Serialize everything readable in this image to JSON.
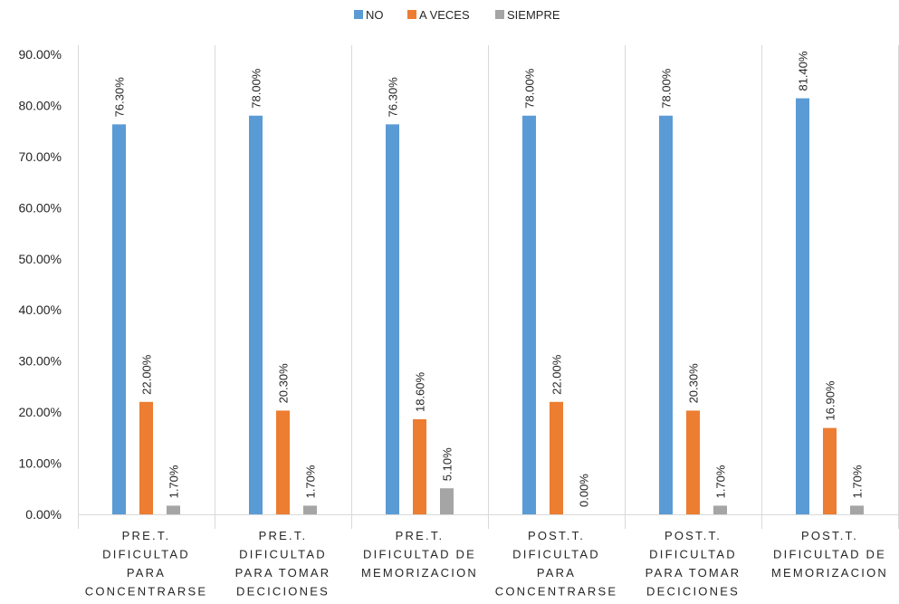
{
  "chart_data": {
    "type": "bar",
    "categories": [
      [
        "PRE.T.",
        "DIFICULTAD",
        "PARA",
        "CONCENTRARSE"
      ],
      [
        "PRE.T.",
        "DIFICULTAD",
        "PARA TOMAR",
        "DECICIONES"
      ],
      [
        "PRE.T.",
        "DIFICULTAD DE",
        "MEMORIZACION"
      ],
      [
        "POST.T.",
        "DIFICULTAD",
        "PARA",
        "CONCENTRARSE"
      ],
      [
        "POST.T.",
        "DIFICULTAD",
        "PARA TOMAR",
        "DECICIONES"
      ],
      [
        "POST.T.",
        "DIFICULTAD DE",
        "MEMORIZACION"
      ]
    ],
    "series": [
      {
        "name": "NO",
        "color": "#5b9bd5",
        "values": [
          76.3,
          78.0,
          76.3,
          78.0,
          78.0,
          81.4
        ],
        "labels": [
          "76.30%",
          "78.00%",
          "76.30%",
          "78.00%",
          "78.00%",
          "81.40%"
        ]
      },
      {
        "name": "A VECES",
        "color": "#ed7d31",
        "values": [
          22.0,
          20.3,
          18.6,
          22.0,
          20.3,
          16.9
        ],
        "labels": [
          "22.00%",
          "20.30%",
          "18.60%",
          "22.00%",
          "20.30%",
          "16.90%"
        ]
      },
      {
        "name": "SIEMPRE",
        "color": "#a5a5a5",
        "values": [
          1.7,
          1.7,
          5.1,
          0.0,
          1.7,
          1.7
        ],
        "labels": [
          "1.70%",
          "1.70%",
          "5.10%",
          "0.00%",
          "1.70%",
          "1.70%"
        ]
      }
    ],
    "yticks": [
      "0.00%",
      "10.00%",
      "20.00%",
      "30.00%",
      "40.00%",
      "50.00%",
      "60.00%",
      "70.00%",
      "80.00%",
      "90.00%"
    ],
    "ylim": [
      0,
      90
    ],
    "legend_position": "top-center",
    "grid": false,
    "category_separators": true,
    "axis_color": "#d9d9d9"
  }
}
